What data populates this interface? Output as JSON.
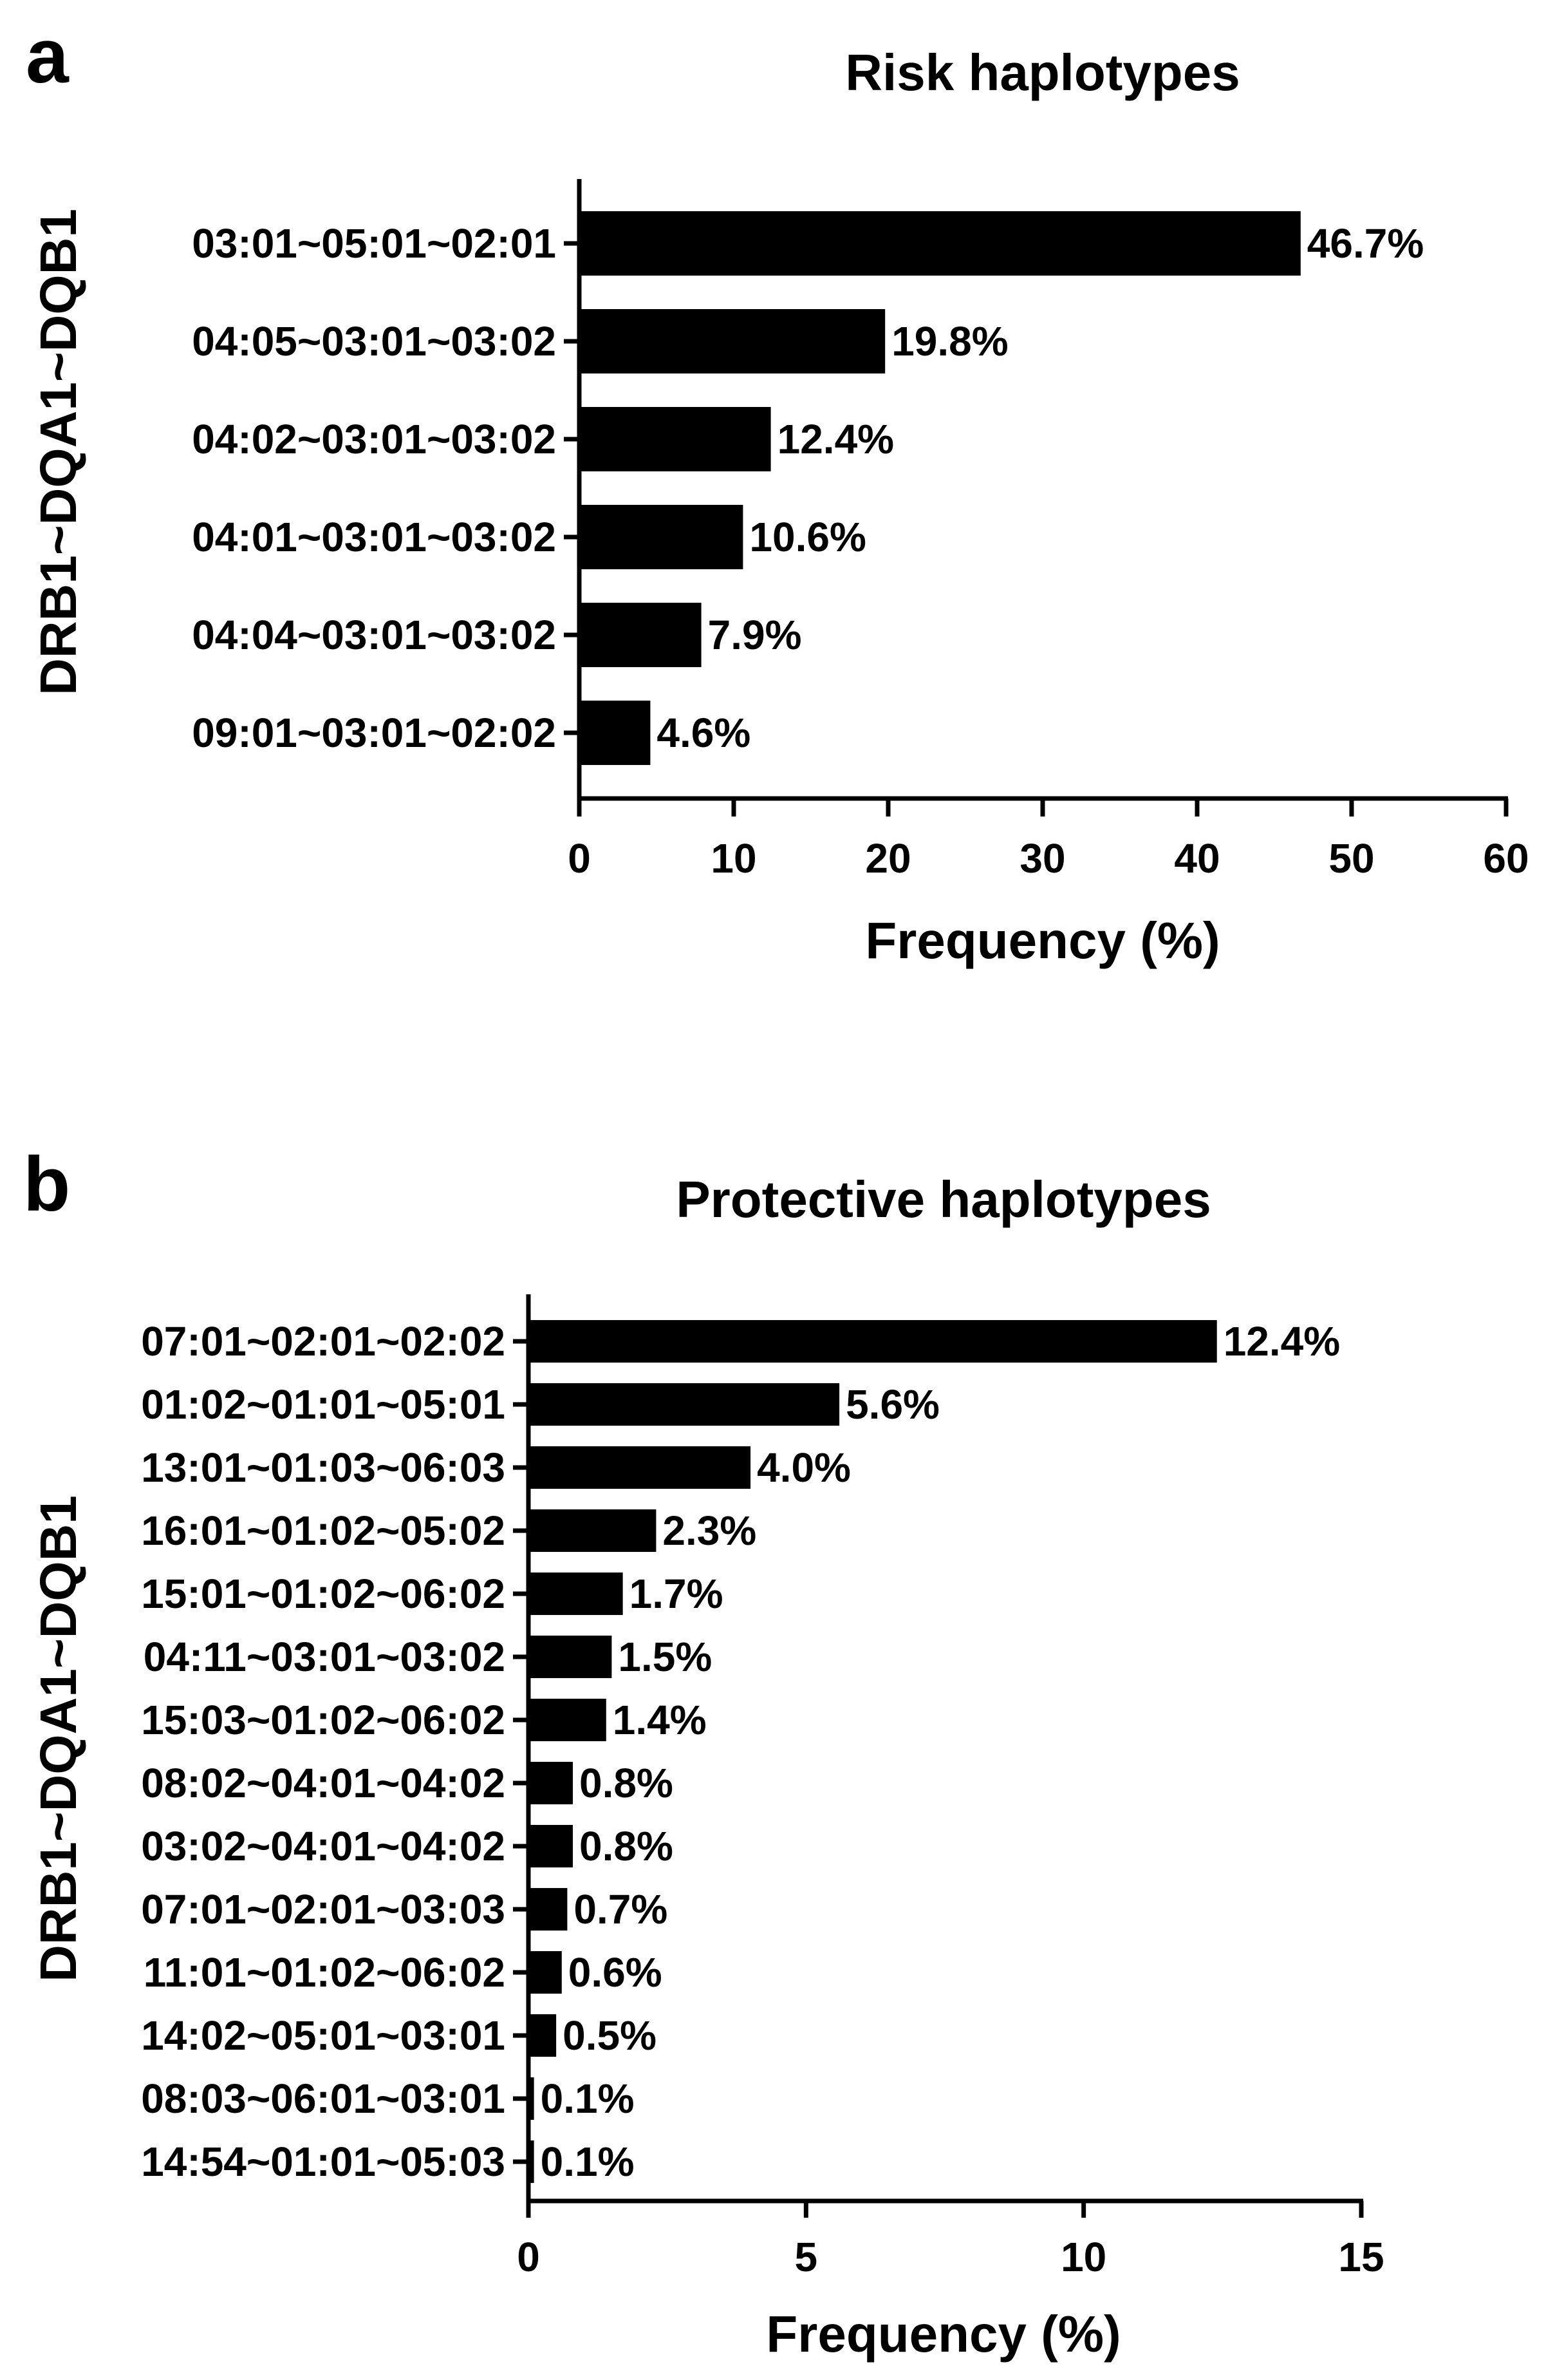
{
  "chart_data": [
    {
      "type": "bar",
      "orientation": "horizontal",
      "panel_label": "a",
      "title": "Risk haplotypes",
      "xlabel": "Frequency (%)",
      "ylabel": "DRB1~DQA1~DQB1",
      "xlim": [
        0,
        60
      ],
      "xticks": [
        0,
        10,
        20,
        30,
        40,
        50,
        60
      ],
      "tick_labels": [
        "0",
        "10",
        "20",
        "30",
        "40",
        "50",
        "60"
      ],
      "categories": [
        "03:01~05:01~02:01",
        "04:05~03:01~03:02",
        "04:02~03:01~03:02",
        "04:01~03:01~03:02",
        "04:04~03:01~03:02",
        "09:01~03:01~02:02"
      ],
      "values": [
        46.7,
        19.8,
        12.4,
        10.6,
        7.9,
        4.6
      ],
      "value_labels": [
        "46.7%",
        "19.8%",
        "12.4%",
        "10.6%",
        "7.9%",
        "4.6%"
      ]
    },
    {
      "type": "bar",
      "orientation": "horizontal",
      "panel_label": "b",
      "title": "Protective haplotypes",
      "xlabel": "Frequency (%)",
      "ylabel": "DRB1~DQA1~DQB1",
      "xlim": [
        0,
        15
      ],
      "xticks": [
        0,
        5,
        10,
        15
      ],
      "tick_labels": [
        "0",
        "5",
        "10",
        "15"
      ],
      "categories": [
        "07:01~02:01~02:02",
        "01:02~01:01~05:01",
        "13:01~01:03~06:03",
        "16:01~01:02~05:02",
        "15:01~01:02~06:02",
        "04:11~03:01~03:02",
        "15:03~01:02~06:02",
        "08:02~04:01~04:02",
        "03:02~04:01~04:02",
        "07:01~02:01~03:03",
        "11:01~01:02~06:02",
        "14:02~05:01~03:01",
        "08:03~06:01~03:01",
        "14:54~01:01~05:03"
      ],
      "values": [
        12.4,
        5.6,
        4.0,
        2.3,
        1.7,
        1.5,
        1.4,
        0.8,
        0.8,
        0.7,
        0.6,
        0.5,
        0.1,
        0.1
      ],
      "value_labels": [
        "12.4%",
        "5.6%",
        "4.0%",
        "2.3%",
        "1.7%",
        "1.5%",
        "1.4%",
        "0.8%",
        "0.8%",
        "0.7%",
        "0.6%",
        "0.5%",
        "0.1%",
        "0.1%"
      ]
    }
  ]
}
